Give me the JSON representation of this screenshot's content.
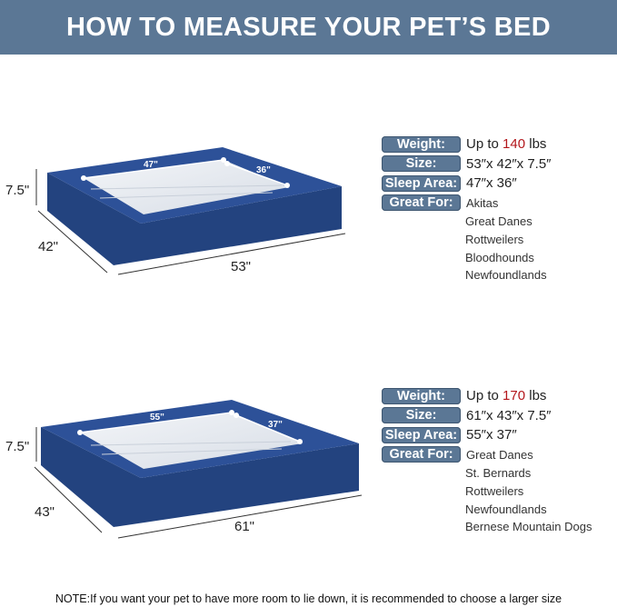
{
  "header": {
    "title": "HOW TO MEASURE YOUR PET’S BED"
  },
  "beds": [
    {
      "weight_prefix": "Up to ",
      "weight_value": "140",
      "weight_suffix": " lbs",
      "size": "53″x 42″x 7.5″",
      "sleep_area": "47″x 36″",
      "great_for": [
        "Akitas",
        "Great Danes",
        "Rottweilers",
        "Bloodhounds",
        "Newfoundlands"
      ],
      "dims": {
        "height": "7.5\"",
        "depth": "42\"",
        "width": "53\"",
        "inner_width": "47\"",
        "inner_depth": "36\""
      }
    },
    {
      "weight_prefix": "Up to ",
      "weight_value": "170",
      "weight_suffix": " lbs",
      "size": "61″x 43″x 7.5″",
      "sleep_area": "55″x 37″",
      "great_for": [
        "Great Danes",
        "St. Bernards",
        "Rottweilers",
        "Newfoundlands",
        "Bernese Mountain Dogs"
      ],
      "dims": {
        "height": "7.5\"",
        "depth": "43\"",
        "width": "61\"",
        "inner_width": "55\"",
        "inner_depth": "37\""
      }
    }
  ],
  "labels": {
    "weight": "Weight:",
    "size": "Size:",
    "sleep_area": "Sleep Area:",
    "great_for": "Great For:"
  },
  "colors": {
    "header": "#5b7795",
    "bed": "#2d4f93",
    "highlight": "#b3161b"
  },
  "note": "NOTE:If you want your pet to have more room to lie down, it is recommended to choose a larger size"
}
